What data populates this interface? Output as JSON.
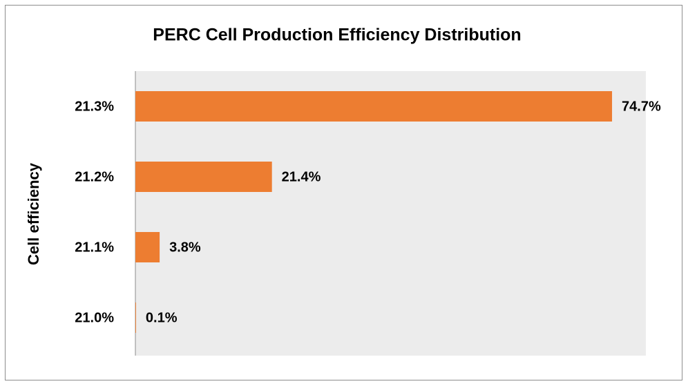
{
  "chart_data": {
    "type": "bar",
    "orientation": "horizontal",
    "title": "PERC Cell Production Efficiency Distribution",
    "y_label": "Cell efficiency",
    "categories": [
      "21.3%",
      "21.2%",
      "21.1%",
      "21.0%"
    ],
    "values": [
      74.7,
      21.4,
      3.8,
      0.1
    ],
    "value_labels": [
      "74.7%",
      "21.4%",
      "3.8%",
      "0.1%"
    ],
    "color": "#ed7d31",
    "xlim": [
      0,
      80
    ]
  }
}
